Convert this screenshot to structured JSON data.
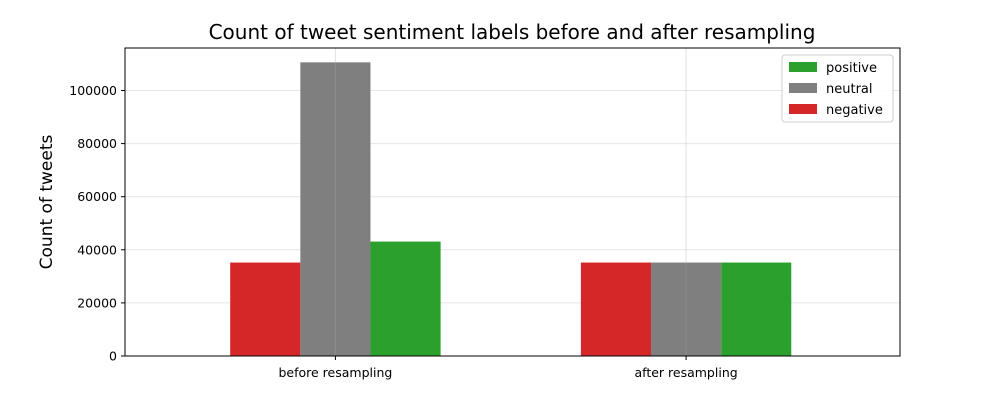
{
  "chart_data": {
    "type": "bar",
    "title": "Count of tweet sentiment labels before and after resampling",
    "xlabel": "",
    "ylabel": "Count of tweets",
    "categories": [
      "before resampling",
      "after resampling"
    ],
    "series": [
      {
        "name": "negative",
        "color": "#d62728",
        "values": [
          35200,
          35200
        ]
      },
      {
        "name": "neutral",
        "color": "#7f7f7f",
        "values": [
          110600,
          35200
        ]
      },
      {
        "name": "positive",
        "color": "#2ca02c",
        "values": [
          43100,
          35200
        ]
      }
    ],
    "ylim": [
      0,
      116000
    ],
    "yticks": [
      0,
      20000,
      40000,
      60000,
      80000,
      100000
    ],
    "grid": true,
    "legend": {
      "position": "top-right",
      "order": [
        "positive",
        "neutral",
        "negative"
      ]
    }
  }
}
